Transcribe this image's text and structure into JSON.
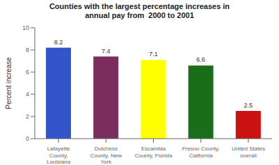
{
  "chart_data": {
    "type": "bar",
    "title": "Counties with the largest percentage increases in\nannual pay from  2000 to 2001",
    "categories": [
      "Lafayette\nCounty,\nLouisiana",
      "Dutchess\nCounty, New\nYork",
      "Escambia\nCounty, Florida",
      "Fresno County,\nCalifornia",
      "United States\noverall"
    ],
    "values": [
      8.2,
      7.4,
      7.1,
      6.6,
      2.5
    ],
    "colors": [
      "#3355cc",
      "#7b2d5e",
      "#ffff00",
      "#1a6e1a",
      "#cc1111"
    ],
    "ylabel": "Percent increase",
    "ylim": [
      0,
      10
    ],
    "yticks": [
      0,
      2,
      4,
      6,
      8,
      10
    ],
    "data_labels": true,
    "grid": false
  }
}
